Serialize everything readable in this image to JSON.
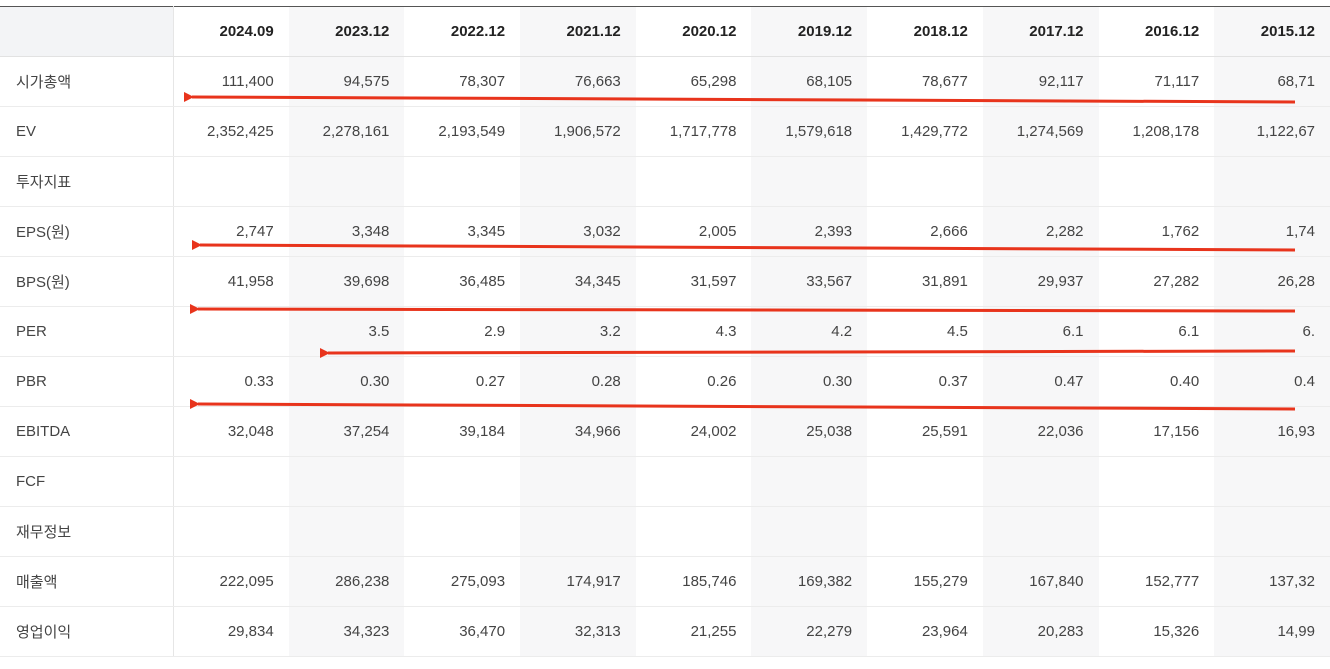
{
  "table": {
    "corner": "",
    "columns": [
      "2024.09",
      "2023.12",
      "2022.12",
      "2021.12",
      "2020.12",
      "2019.12",
      "2018.12",
      "2017.12",
      "2016.12",
      "2015.12"
    ],
    "rows": [
      {
        "label": "시가총액",
        "values": [
          "111,400",
          "94,575",
          "78,307",
          "76,663",
          "65,298",
          "68,105",
          "78,677",
          "92,117",
          "71,117",
          "68,71"
        ]
      },
      {
        "label": "EV",
        "values": [
          "2,352,425",
          "2,278,161",
          "2,193,549",
          "1,906,572",
          "1,717,778",
          "1,579,618",
          "1,429,772",
          "1,274,569",
          "1,208,178",
          "1,122,67"
        ]
      },
      {
        "label": "투자지표",
        "values": [
          "",
          "",
          "",
          "",
          "",
          "",
          "",
          "",
          "",
          ""
        ]
      },
      {
        "label": "EPS(원)",
        "values": [
          "2,747",
          "3,348",
          "3,345",
          "3,032",
          "2,005",
          "2,393",
          "2,666",
          "2,282",
          "1,762",
          "1,74"
        ]
      },
      {
        "label": "BPS(원)",
        "values": [
          "41,958",
          "39,698",
          "36,485",
          "34,345",
          "31,597",
          "33,567",
          "31,891",
          "29,937",
          "27,282",
          "26,28"
        ]
      },
      {
        "label": "PER",
        "values": [
          "",
          "3.5",
          "2.9",
          "3.2",
          "4.3",
          "4.2",
          "4.5",
          "6.1",
          "6.1",
          "6."
        ]
      },
      {
        "label": "PBR",
        "values": [
          "0.33",
          "0.30",
          "0.27",
          "0.28",
          "0.26",
          "0.30",
          "0.37",
          "0.47",
          "0.40",
          "0.4"
        ]
      },
      {
        "label": "EBITDA",
        "values": [
          "32,048",
          "37,254",
          "39,184",
          "34,966",
          "24,002",
          "25,038",
          "25,591",
          "22,036",
          "17,156",
          "16,93"
        ]
      },
      {
        "label": "FCF",
        "values": [
          "",
          "",
          "",
          "",
          "",
          "",
          "",
          "",
          "",
          ""
        ]
      },
      {
        "label": "재무정보",
        "values": [
          "",
          "",
          "",
          "",
          "",
          "",
          "",
          "",
          "",
          ""
        ]
      },
      {
        "label": "매출액",
        "values": [
          "222,095",
          "286,238",
          "275,093",
          "174,917",
          "185,746",
          "169,382",
          "155,279",
          "167,840",
          "152,777",
          "137,32"
        ]
      },
      {
        "label": "영업이익",
        "values": [
          "29,834",
          "34,323",
          "36,470",
          "32,313",
          "21,255",
          "22,279",
          "23,964",
          "20,283",
          "15,326",
          "14,99"
        ]
      }
    ]
  },
  "annotation_color": "#e8341c"
}
